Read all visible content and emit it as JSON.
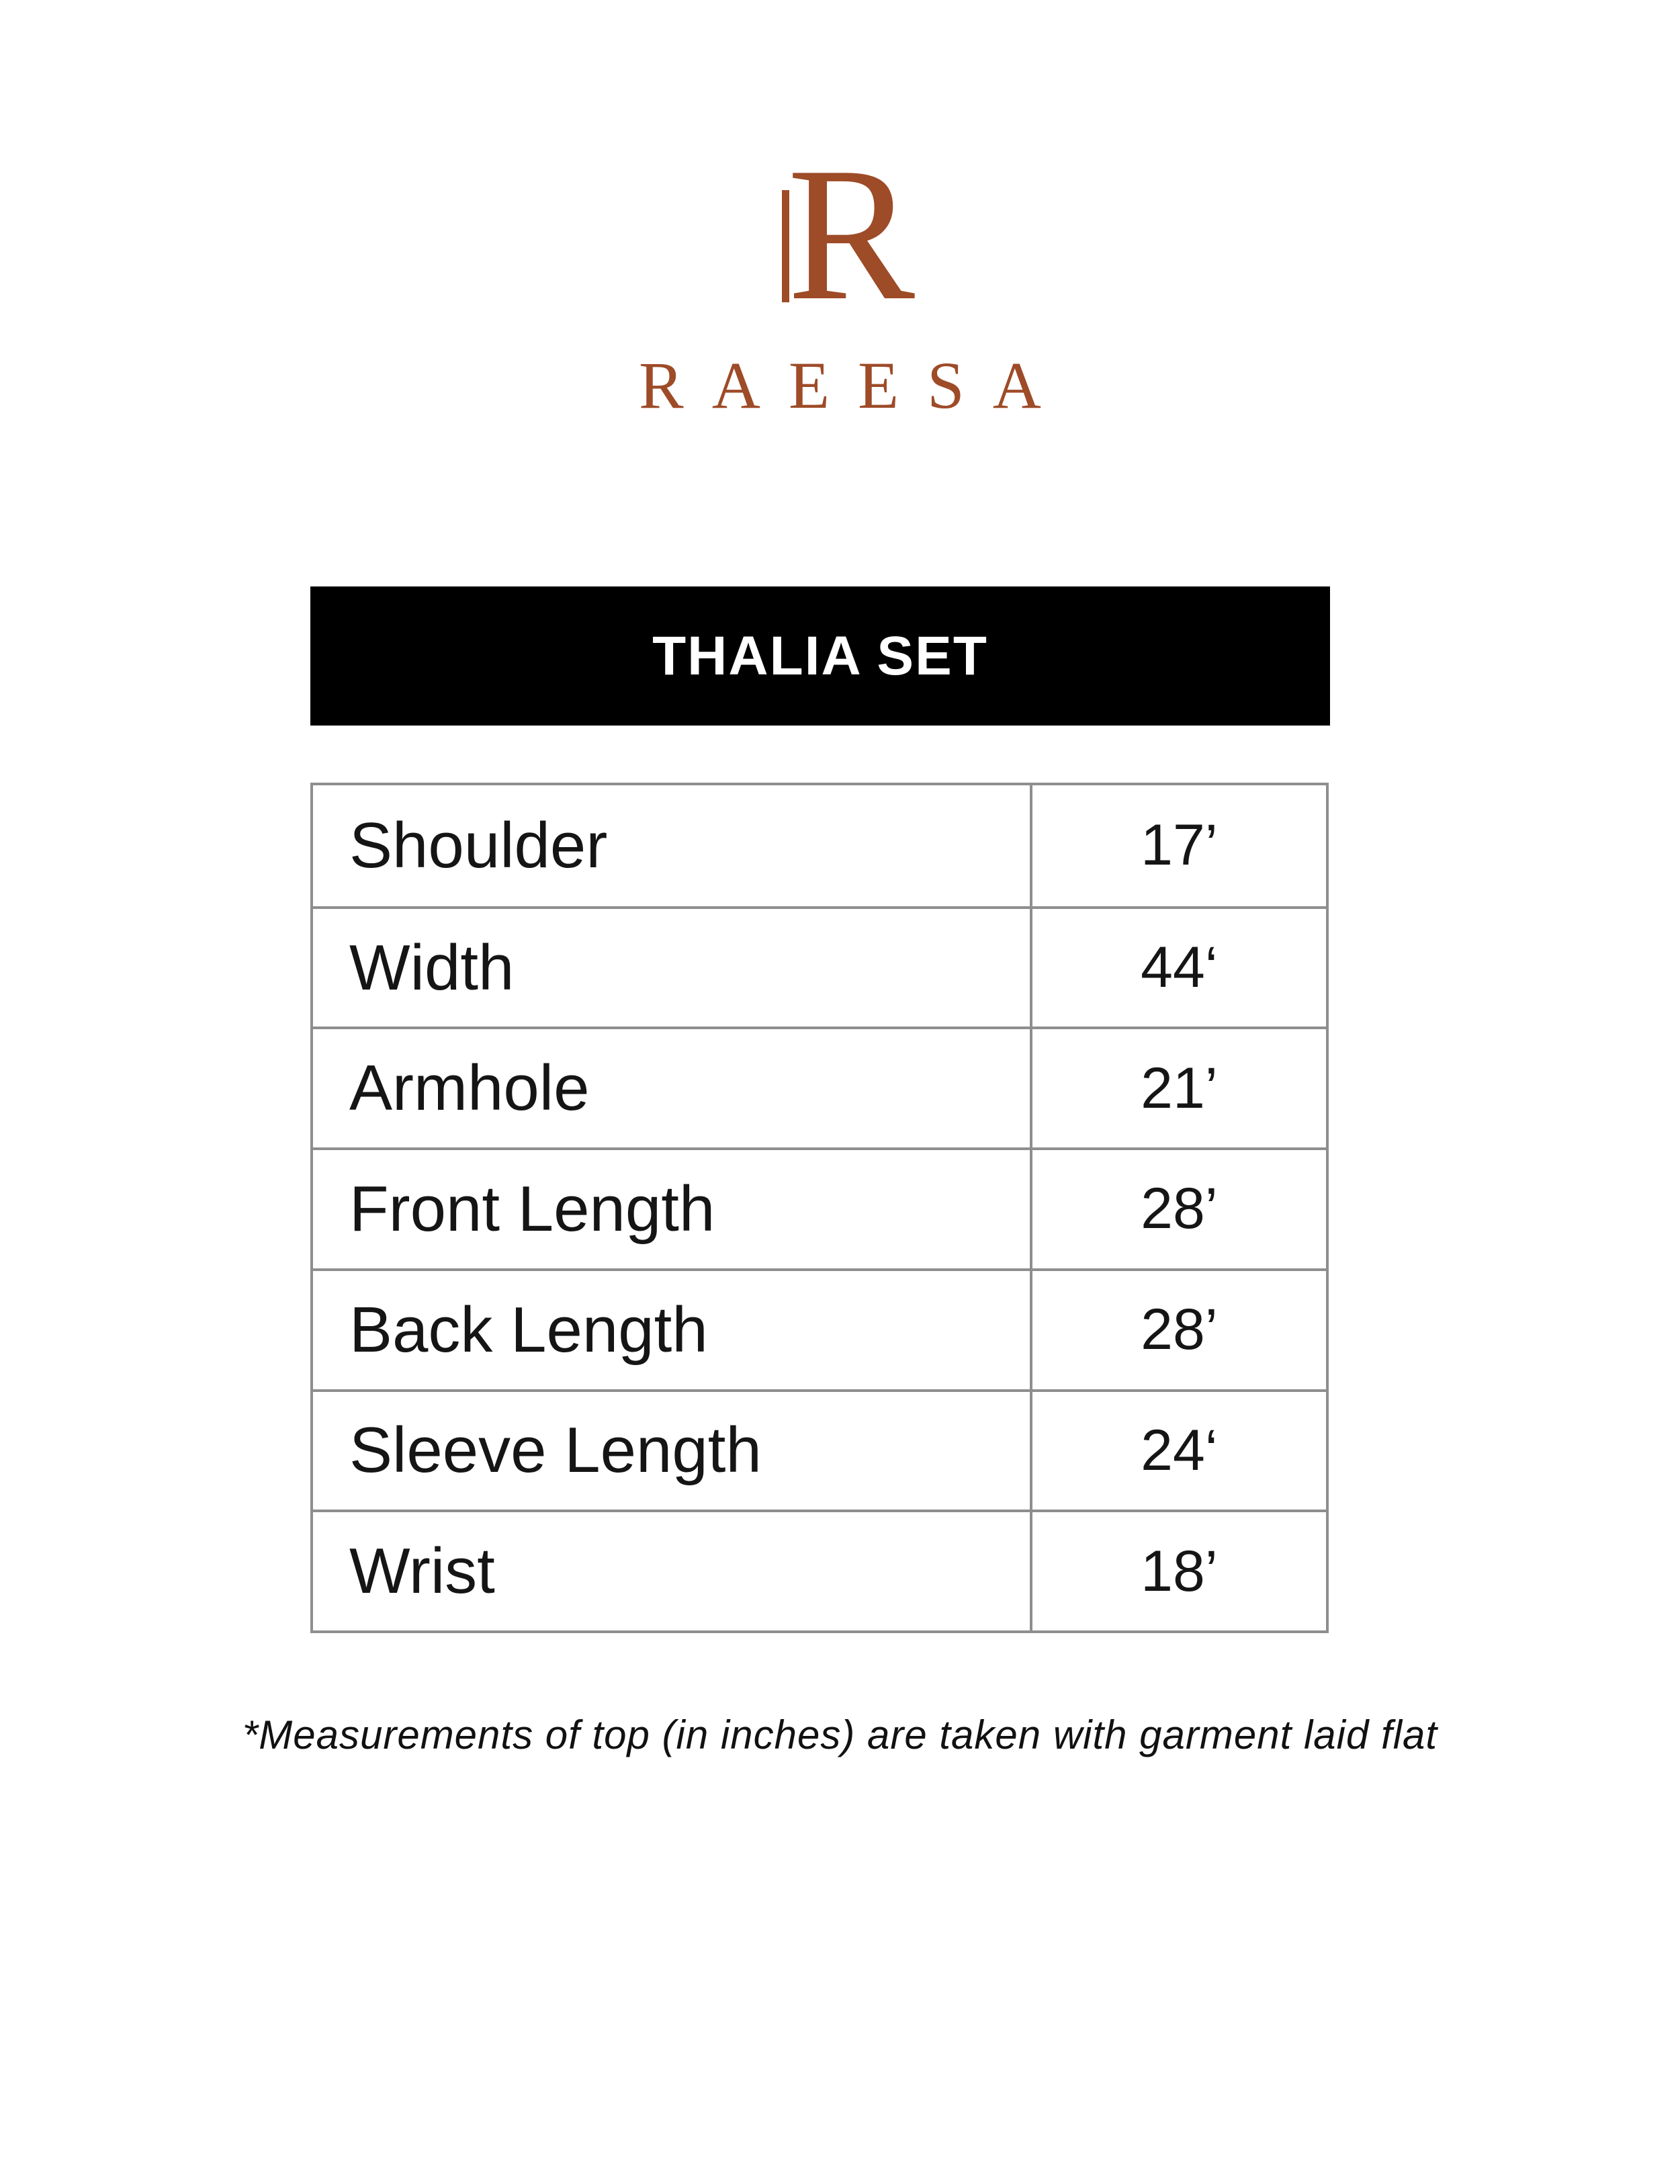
{
  "theme": {
    "accent_color": "#9e4b28",
    "banner_bg": "#000000",
    "banner_text_color": "#ffffff",
    "table_border_color": "#8e8e8e"
  },
  "brand": {
    "monogram": "R",
    "wordmark": "RAEESA"
  },
  "banner": {
    "title": "THALIA SET"
  },
  "size_table": {
    "rows": [
      {
        "label": "Shoulder",
        "value": "17’"
      },
      {
        "label": "Width",
        "value": "44‘"
      },
      {
        "label": "Armhole",
        "value": "21’"
      },
      {
        "label": "Front Length",
        "value": "28’"
      },
      {
        "label": "Back Length",
        "value": "28’"
      },
      {
        "label": "Sleeve Length",
        "value": "24‘"
      },
      {
        "label": "Wrist",
        "value": "18’"
      }
    ]
  },
  "footnote": {
    "text": "*Measurements of top (in inches) are taken with garment laid flat"
  }
}
